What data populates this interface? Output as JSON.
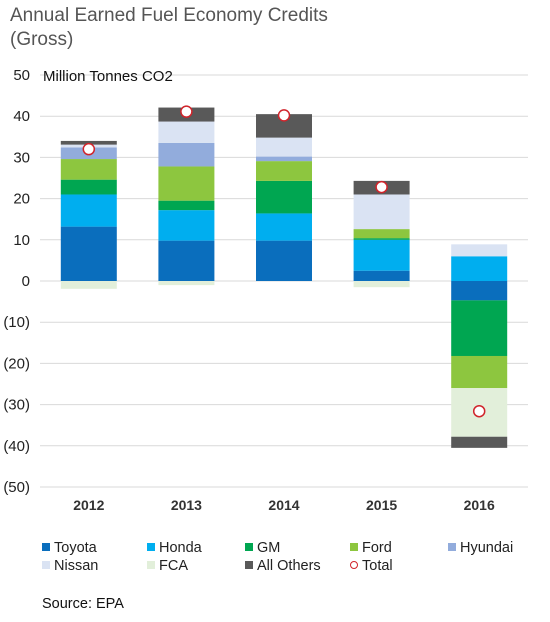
{
  "chart_data": {
    "type": "bar",
    "stacked": true,
    "title": "Annual Earned Fuel Economy Credits\n(Gross)",
    "unit_label": "Million Tonnes CO2",
    "source": "Source: EPA",
    "categories": [
      "2012",
      "2013",
      "2014",
      "2015",
      "2016"
    ],
    "ylim": [
      -50,
      50
    ],
    "yticks": [
      50,
      40,
      30,
      20,
      10,
      0,
      -10,
      -20,
      -30,
      -40,
      -50
    ],
    "ytick_labels": [
      "50",
      "40",
      "30",
      "20",
      "10",
      "0",
      "(10)",
      "(20)",
      "(30)",
      "(40)",
      "(50)"
    ],
    "grid": true,
    "legend_position": "bottom",
    "series": [
      {
        "name": "Toyota",
        "color": "#0a6ebd",
        "values": [
          13.2,
          9.8,
          9.8,
          2.5,
          -4.7
        ]
      },
      {
        "name": "Honda",
        "color": "#00aeef",
        "values": [
          7.8,
          7.4,
          6.6,
          7.5,
          6.0
        ]
      },
      {
        "name": "GM",
        "color": "#00a651",
        "values": [
          3.6,
          2.3,
          7.9,
          0.4,
          -13.5
        ]
      },
      {
        "name": "Ford",
        "color": "#8dc63f",
        "values": [
          5.0,
          8.3,
          4.8,
          2.2,
          -7.8
        ]
      },
      {
        "name": "Hyundai",
        "color": "#92acdc",
        "values": [
          2.8,
          5.7,
          1.1,
          0.0,
          0.0
        ]
      },
      {
        "name": "Nissan",
        "color": "#dae3f3",
        "values": [
          0.7,
          5.2,
          4.6,
          8.4,
          2.9
        ]
      },
      {
        "name": "FCA",
        "color": "#e2efda",
        "values": [
          -1.9,
          -1.0,
          0.0,
          -1.5,
          -11.8
        ]
      },
      {
        "name": "All Others",
        "color": "#595959",
        "values": [
          0.9,
          3.4,
          5.7,
          3.3,
          -2.7
        ]
      }
    ],
    "total": {
      "name": "Total",
      "color": "#d0242b",
      "values": [
        32.0,
        41.1,
        40.2,
        22.8,
        -31.6
      ]
    }
  }
}
